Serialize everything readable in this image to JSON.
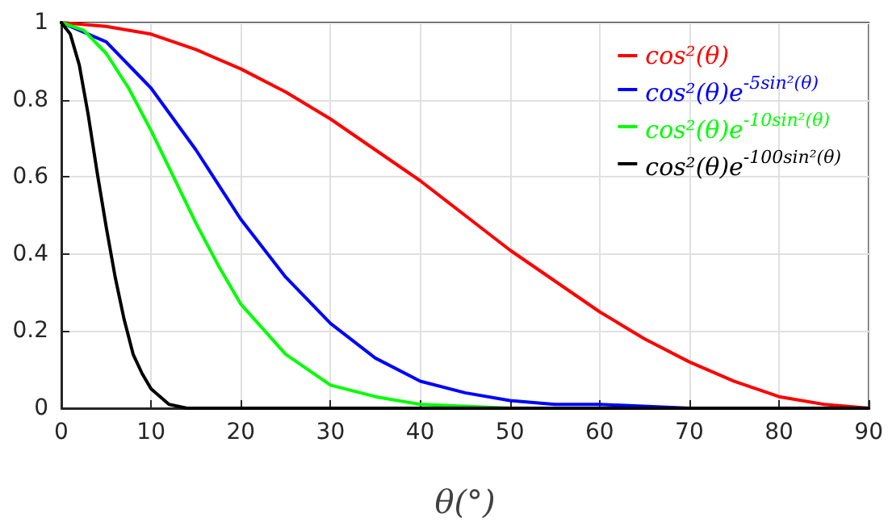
{
  "chart_data": {
    "type": "line",
    "xlabel": "θ(°)",
    "xlim": [
      0,
      90
    ],
    "xticks": [
      0,
      10,
      20,
      30,
      40,
      50,
      60,
      70,
      80,
      90
    ],
    "ylim": [
      0,
      1
    ],
    "yticks": [
      0,
      0.2,
      0.4,
      0.6,
      0.8,
      1
    ],
    "grid": true,
    "legend": "top right",
    "marker": "none",
    "line_style": "solid",
    "series": [
      {
        "name": "cos²(θ)",
        "color": "#ff0000",
        "x": [
          0,
          5,
          10,
          15,
          20,
          25,
          30,
          35,
          40,
          45,
          50,
          55,
          60,
          65,
          70,
          75,
          80,
          85,
          90
        ],
        "values": [
          1,
          0.99,
          0.97,
          0.93,
          0.88,
          0.82,
          0.75,
          0.67,
          0.59,
          0.5,
          0.41,
          0.33,
          0.25,
          0.18,
          0.12,
          0.07,
          0.03,
          0.01,
          0
        ]
      },
      {
        "name": "cos²(θ)e$^{-5sin²(θ)}$",
        "color": "#0000ff",
        "x": [
          0,
          5,
          10,
          15,
          20,
          25,
          30,
          35,
          40,
          45,
          50,
          55,
          60,
          70,
          80,
          90
        ],
        "values": [
          1,
          0.95,
          0.83,
          0.67,
          0.49,
          0.34,
          0.22,
          0.13,
          0.07,
          0.04,
          0.02,
          0.01,
          0.01,
          0,
          0,
          0
        ]
      },
      {
        "name": "cos²(θ)e$^{-10sin²(θ)}$",
        "color": "#00ff00",
        "x": [
          0,
          2.5,
          5,
          7.5,
          10,
          12.5,
          15,
          17.5,
          20,
          25,
          30,
          35,
          40,
          50,
          60,
          90
        ],
        "values": [
          1,
          0.98,
          0.92,
          0.83,
          0.72,
          0.6,
          0.48,
          0.37,
          0.27,
          0.14,
          0.06,
          0.03,
          0.01,
          0,
          0,
          0
        ]
      },
      {
        "name": "cos²(θ)e$^{-100sin²(θ)}$",
        "color": "#000000",
        "x": [
          0,
          1,
          2,
          3,
          4,
          5,
          6,
          7,
          8,
          9,
          10,
          12,
          14,
          16,
          90
        ],
        "values": [
          1,
          0.97,
          0.89,
          0.76,
          0.61,
          0.47,
          0.34,
          0.23,
          0.14,
          0.09,
          0.05,
          0.01,
          0,
          0,
          0
        ]
      }
    ]
  }
}
